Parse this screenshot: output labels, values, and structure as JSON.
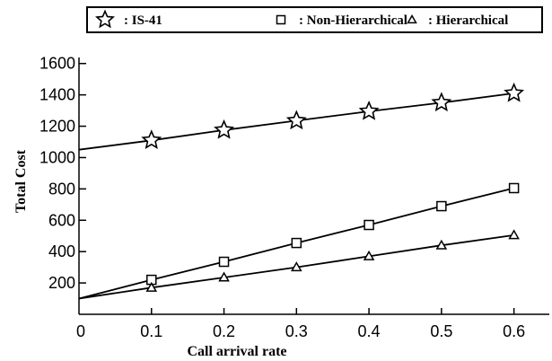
{
  "chart_data": {
    "type": "line",
    "xlabel": "Call arrival rate",
    "ylabel": "Total Cost",
    "xlim": [
      0,
      0.65
    ],
    "ylim": [
      0,
      1650
    ],
    "x_ticks": [
      "0",
      "0.1",
      "0.2",
      "0.3",
      "0.4",
      "0.5",
      "0.6"
    ],
    "y_ticks": [
      "200",
      "400",
      "600",
      "800",
      "1000",
      "1200",
      "1400",
      "1600"
    ],
    "grid": false,
    "legend_position": "top",
    "series": [
      {
        "name": ": IS-41",
        "marker": "star",
        "x": [
          0,
          0.1,
          0.2,
          0.3,
          0.4,
          0.5,
          0.6
        ],
        "values": [
          1050,
          1110,
          1175,
          1235,
          1295,
          1350,
          1410
        ],
        "marked": [
          false,
          true,
          true,
          true,
          true,
          true,
          true
        ]
      },
      {
        "name": ": Non-Hierarchical",
        "marker": "square",
        "x": [
          0,
          0.1,
          0.2,
          0.3,
          0.4,
          0.5,
          0.6
        ],
        "values": [
          100,
          220,
          335,
          455,
          570,
          690,
          805
        ],
        "marked": [
          false,
          true,
          true,
          true,
          true,
          true,
          true
        ]
      },
      {
        "name": ": Hierarchical",
        "marker": "triangle",
        "x": [
          0,
          0.1,
          0.2,
          0.3,
          0.4,
          0.5,
          0.6
        ],
        "values": [
          100,
          170,
          235,
          300,
          370,
          440,
          505
        ],
        "marked": [
          false,
          true,
          true,
          true,
          true,
          true,
          true
        ]
      }
    ]
  }
}
